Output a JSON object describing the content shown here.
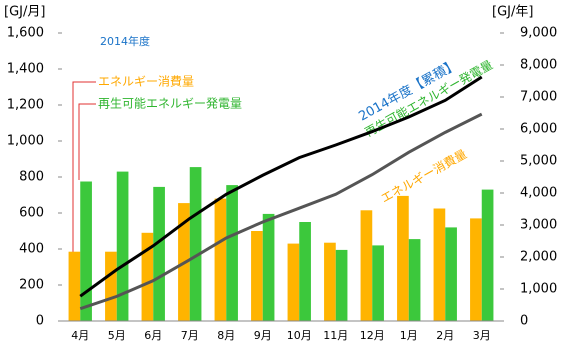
{
  "chart_data": {
    "type": "bar",
    "y_label": "[GJ/月]",
    "y2_label": "[GJ/年]",
    "legend_title": "2014年度",
    "line_title": "2014年度【累積】",
    "categories": [
      "4月",
      "5月",
      "6月",
      "7月",
      "8月",
      "9月",
      "10月",
      "11月",
      "12月",
      "1月",
      "2月",
      "3月"
    ],
    "series": [
      {
        "name": "エネルギー消費量",
        "type": "bar",
        "color": "#ffb400",
        "values": [
          385,
          385,
          490,
          655,
          680,
          500,
          430,
          435,
          615,
          695,
          625,
          570
        ]
      },
      {
        "name": "再生可能エネルギー発電量",
        "type": "bar",
        "color": "#3cc83c",
        "values": [
          775,
          830,
          745,
          855,
          755,
          595,
          550,
          395,
          420,
          455,
          520,
          730
        ]
      },
      {
        "name": "再生可能エネルギー発電量",
        "type": "line",
        "axis": "y2",
        "color": "#000000",
        "values": [
          775,
          1605,
          2350,
          3205,
          3960,
          4555,
          5105,
          5500,
          5920,
          6375,
          6895,
          7625
        ]
      },
      {
        "name": "エネルギー消費量",
        "type": "line",
        "axis": "y2",
        "color": "#555555",
        "values": [
          385,
          770,
          1260,
          1915,
          2595,
          3095,
          3525,
          3960,
          4575,
          5270,
          5895,
          6465
        ]
      }
    ],
    "ylim": [
      0,
      1600
    ],
    "yticks": [
      0,
      200,
      400,
      600,
      800,
      {
        "value": 1000,
        "label": "1,000"
      },
      {
        "value": 1200,
        "label": "1,200"
      },
      {
        "value": 1400,
        "label": "1,400"
      },
      {
        "value": 1600,
        "label": "1,600"
      }
    ],
    "y2lim": [
      0,
      9000
    ],
    "y2ticks": [
      0,
      {
        "value": 1000,
        "label": "1,000"
      },
      {
        "value": 2000,
        "label": "2,000"
      },
      {
        "value": 3000,
        "label": "3,000"
      },
      {
        "value": 4000,
        "label": "4,000"
      },
      {
        "value": 5000,
        "label": "5,000"
      },
      {
        "value": 6000,
        "label": "6,000"
      },
      {
        "value": 7000,
        "label": "7,000"
      },
      {
        "value": 8000,
        "label": "8,000"
      },
      {
        "value": 9000,
        "label": "9,000"
      }
    ],
    "grid": false
  }
}
